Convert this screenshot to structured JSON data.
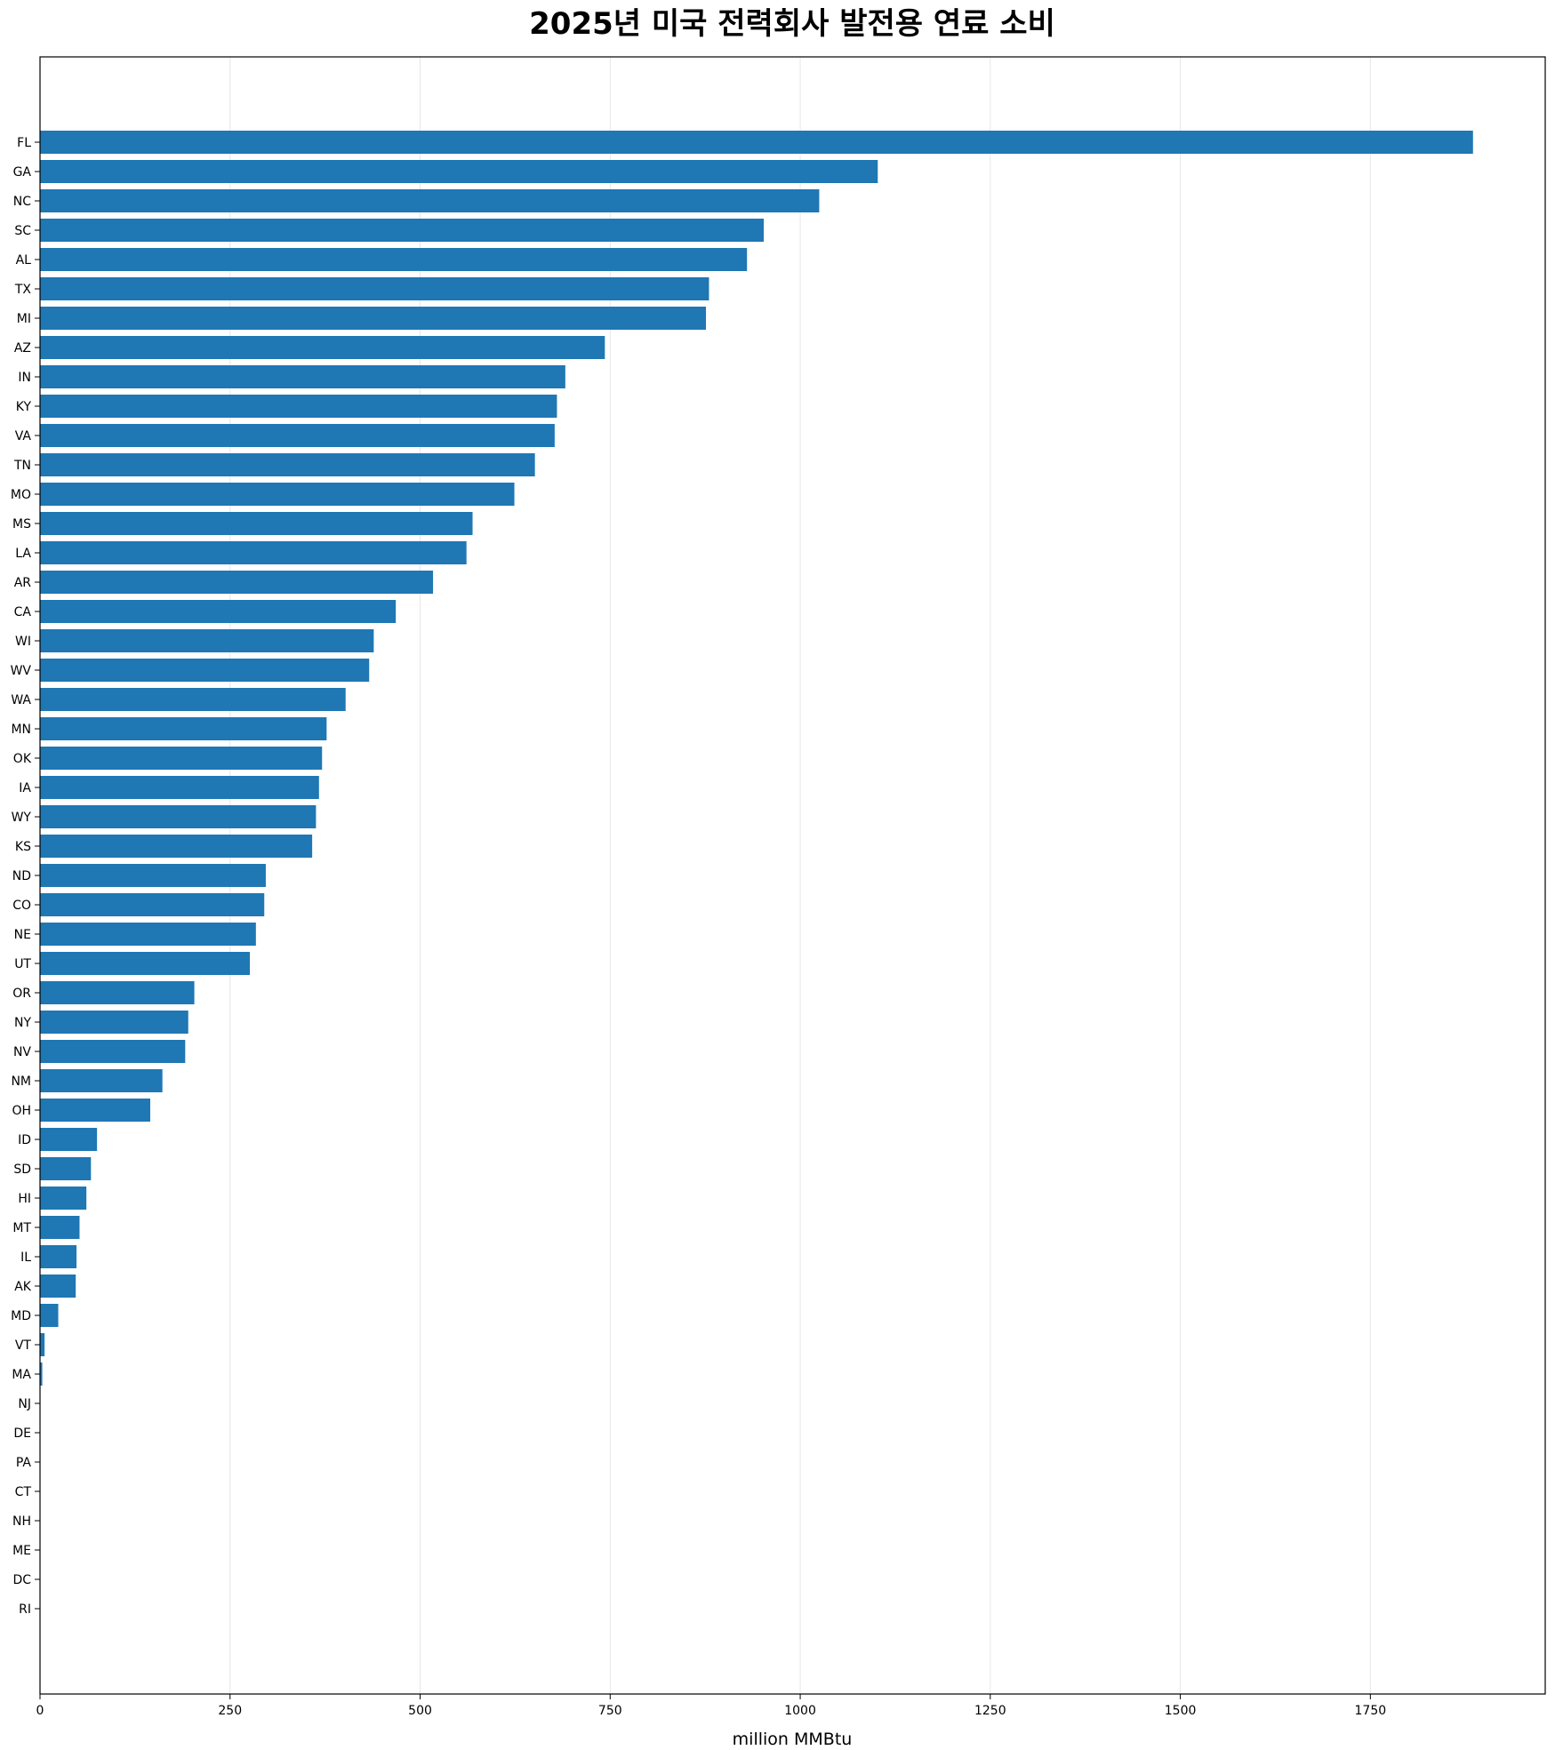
{
  "chart_data": {
    "type": "bar",
    "orientation": "horizontal",
    "title": "2025년 미국 전력회사 발전용 연료 소비",
    "xlabel": "million MMBtu",
    "ylabel": "",
    "xlim": [
      0,
      1980
    ],
    "xticks": [
      0,
      250,
      500,
      750,
      1000,
      1250,
      1500,
      1750
    ],
    "grid": "x",
    "bar_color": "#1f77b4",
    "categories": [
      "FL",
      "GA",
      "NC",
      "SC",
      "AL",
      "TX",
      "MI",
      "AZ",
      "IN",
      "KY",
      "VA",
      "TN",
      "MO",
      "MS",
      "LA",
      "AR",
      "CA",
      "WI",
      "WV",
      "WA",
      "MN",
      "OK",
      "IA",
      "WY",
      "KS",
      "ND",
      "CO",
      "NE",
      "UT",
      "OR",
      "NY",
      "NV",
      "NM",
      "OH",
      "ID",
      "SD",
      "HI",
      "MT",
      "IL",
      "AK",
      "MD",
      "VT",
      "MA",
      "NJ",
      "DE",
      "PA",
      "CT",
      "NH",
      "ME",
      "DC",
      "RI"
    ],
    "values": [
      1885,
      1102,
      1025,
      952,
      930,
      880,
      876,
      743,
      691,
      680,
      677,
      651,
      624,
      569,
      561,
      517,
      468,
      439,
      433,
      402,
      377,
      371,
      367,
      363,
      358,
      297,
      295,
      284,
      276,
      203,
      195,
      191,
      161,
      145,
      75,
      67,
      61,
      52,
      48,
      47,
      24,
      6,
      3,
      0,
      0,
      0,
      0,
      0,
      0,
      0,
      0
    ]
  }
}
